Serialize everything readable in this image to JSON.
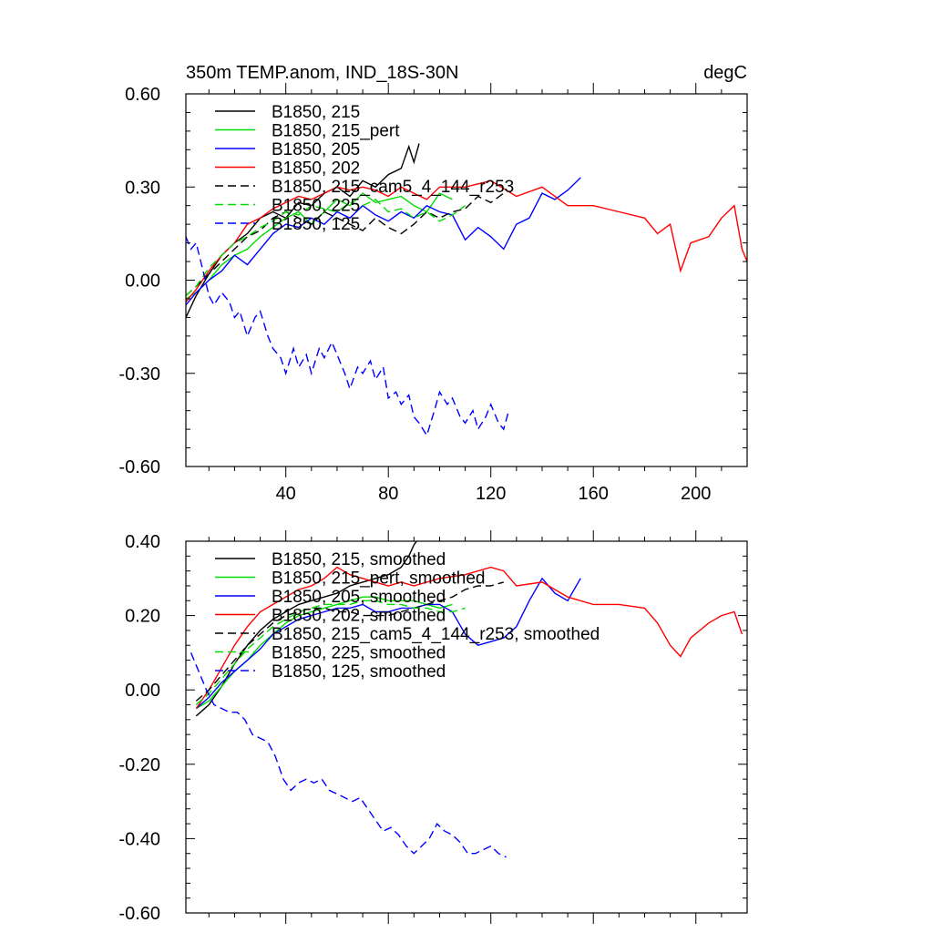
{
  "chart_data": [
    {
      "type": "line",
      "title": "350m TEMP.anom, IND_18S-30N",
      "units": "degC",
      "xlabel": "",
      "ylabel": "",
      "xlim": [
        1,
        220
      ],
      "ylim": [
        -0.6,
        0.6
      ],
      "x_ticks": [
        40,
        80,
        120,
        160,
        200
      ],
      "x_tick_labels": [
        "40",
        "80",
        "120",
        "160",
        "200"
      ],
      "y_ticks": [
        0.6,
        0.3,
        0.0,
        -0.3,
        -0.6
      ],
      "y_tick_labels": [
        "0.60",
        "0.30",
        "0.00",
        "-0.30",
        "-0.60"
      ],
      "legend_position": "top-left",
      "series": [
        {
          "name": "B1850, 215",
          "color": "#000000",
          "dash": "solid",
          "x": [
            1,
            5,
            10,
            15,
            20,
            25,
            30,
            35,
            40,
            45,
            50,
            55,
            60,
            65,
            70,
            75,
            80,
            85,
            88,
            90,
            92
          ],
          "values": [
            -0.12,
            -0.05,
            0.02,
            0.08,
            0.12,
            0.15,
            0.2,
            0.22,
            0.2,
            0.25,
            0.24,
            0.28,
            0.3,
            0.27,
            0.32,
            0.3,
            0.34,
            0.36,
            0.43,
            0.38,
            0.44
          ]
        },
        {
          "name": "B1850, 215_pert",
          "color": "#00dd00",
          "dash": "solid",
          "x": [
            1,
            5,
            10,
            15,
            20,
            25,
            30,
            35,
            40,
            45,
            50,
            55,
            60,
            65,
            70,
            75,
            80,
            85,
            90,
            95,
            100,
            105
          ],
          "values": [
            -0.06,
            -0.04,
            0.0,
            0.05,
            0.08,
            0.1,
            0.14,
            0.17,
            0.2,
            0.22,
            0.18,
            0.22,
            0.26,
            0.24,
            0.28,
            0.25,
            0.26,
            0.27,
            0.24,
            0.22,
            0.28,
            0.26
          ]
        },
        {
          "name": "B1850, 205",
          "color": "#0000ff",
          "dash": "solid",
          "x": [
            1,
            5,
            10,
            15,
            20,
            25,
            30,
            35,
            40,
            45,
            50,
            55,
            60,
            65,
            70,
            75,
            80,
            85,
            90,
            95,
            100,
            105,
            110,
            115,
            120,
            125,
            130,
            135,
            140,
            145,
            150,
            155
          ],
          "values": [
            -0.08,
            -0.04,
            0.0,
            0.03,
            0.08,
            0.05,
            0.1,
            0.15,
            0.18,
            0.17,
            0.2,
            0.18,
            0.22,
            0.2,
            0.24,
            0.21,
            0.19,
            0.22,
            0.2,
            0.24,
            0.22,
            0.21,
            0.13,
            0.17,
            0.14,
            0.1,
            0.18,
            0.2,
            0.28,
            0.26,
            0.29,
            0.33
          ]
        },
        {
          "name": "B1850, 202",
          "color": "#ff0000",
          "dash": "solid",
          "x": [
            1,
            5,
            10,
            15,
            20,
            25,
            30,
            35,
            40,
            45,
            50,
            55,
            60,
            65,
            70,
            75,
            80,
            85,
            90,
            95,
            100,
            110,
            120,
            130,
            140,
            150,
            160,
            170,
            180,
            185,
            190,
            194,
            198,
            205,
            210,
            215,
            218,
            220
          ],
          "values": [
            -0.07,
            -0.03,
            0.03,
            0.08,
            0.12,
            0.18,
            0.2,
            0.23,
            0.25,
            0.27,
            0.26,
            0.28,
            0.3,
            0.29,
            0.3,
            0.29,
            0.27,
            0.3,
            0.28,
            0.26,
            0.3,
            0.3,
            0.32,
            0.27,
            0.3,
            0.24,
            0.24,
            0.22,
            0.2,
            0.15,
            0.18,
            0.03,
            0.12,
            0.14,
            0.2,
            0.24,
            0.1,
            0.06
          ]
        },
        {
          "name": "B1850, 215_cam5_4_144_r253",
          "color": "#000000",
          "dash": "dashed",
          "x": [
            1,
            5,
            10,
            15,
            20,
            25,
            30,
            35,
            40,
            45,
            50,
            55,
            60,
            65,
            70,
            75,
            80,
            85,
            90,
            95,
            100,
            105,
            110,
            115,
            120,
            125
          ],
          "values": [
            -0.05,
            -0.02,
            0.02,
            0.06,
            0.1,
            0.14,
            0.16,
            0.2,
            0.22,
            0.2,
            0.18,
            0.22,
            0.2,
            0.18,
            0.16,
            0.2,
            0.17,
            0.15,
            0.18,
            0.22,
            0.2,
            0.22,
            0.23,
            0.27,
            0.25,
            0.28
          ]
        },
        {
          "name": "B1850, 225",
          "color": "#00dd00",
          "dash": "dashed",
          "x": [
            1,
            5,
            10,
            15,
            20,
            25,
            30,
            35,
            40,
            45,
            50,
            55,
            60,
            65,
            70,
            75,
            80,
            85,
            90,
            95,
            100,
            105,
            110
          ],
          "values": [
            -0.05,
            -0.02,
            0.04,
            0.08,
            0.12,
            0.14,
            0.17,
            0.19,
            0.22,
            0.21,
            0.24,
            0.23,
            0.22,
            0.25,
            0.24,
            0.26,
            0.22,
            0.23,
            0.2,
            0.22,
            0.19,
            0.21,
            0.24
          ]
        },
        {
          "name": "B1850, 125",
          "color": "#0000ff",
          "dash": "dashed",
          "x": [
            1,
            3,
            5,
            8,
            10,
            12,
            15,
            18,
            20,
            22,
            25,
            28,
            30,
            33,
            35,
            38,
            40,
            43,
            45,
            48,
            50,
            53,
            55,
            58,
            60,
            63,
            65,
            68,
            70,
            73,
            75,
            78,
            80,
            83,
            85,
            88,
            90,
            92,
            95,
            98,
            100,
            103,
            105,
            108,
            110,
            113,
            115,
            118,
            120,
            123,
            125,
            127
          ],
          "values": [
            0.14,
            0.1,
            0.12,
            0.02,
            -0.05,
            -0.08,
            -0.04,
            -0.07,
            -0.12,
            -0.1,
            -0.18,
            -0.12,
            -0.1,
            -0.18,
            -0.22,
            -0.25,
            -0.3,
            -0.22,
            -0.28,
            -0.24,
            -0.3,
            -0.22,
            -0.25,
            -0.2,
            -0.24,
            -0.3,
            -0.35,
            -0.28,
            -0.3,
            -0.26,
            -0.32,
            -0.28,
            -0.38,
            -0.36,
            -0.4,
            -0.37,
            -0.44,
            -0.46,
            -0.5,
            -0.42,
            -0.36,
            -0.4,
            -0.38,
            -0.44,
            -0.46,
            -0.42,
            -0.48,
            -0.44,
            -0.4,
            -0.46,
            -0.48,
            -0.42
          ]
        }
      ]
    },
    {
      "type": "line",
      "title": "",
      "xlim": [
        1,
        220
      ],
      "ylim": [
        -0.6,
        0.4
      ],
      "x_ticks": [
        40,
        80,
        120,
        160,
        200
      ],
      "y_ticks": [
        0.4,
        0.2,
        0.0,
        -0.2,
        -0.4,
        -0.6
      ],
      "y_tick_labels": [
        "0.40",
        "0.20",
        "0.00",
        "-0.20",
        "-0.40",
        "-0.60"
      ],
      "legend_position": "top-left",
      "series": [
        {
          "name": "B1850, 215, smoothed",
          "color": "#000000",
          "dash": "solid",
          "x": [
            5,
            10,
            15,
            20,
            25,
            30,
            35,
            40,
            45,
            50,
            55,
            60,
            65,
            70,
            75,
            80,
            85,
            88,
            90,
            92
          ],
          "values": [
            -0.07,
            -0.04,
            0.01,
            0.07,
            0.12,
            0.16,
            0.19,
            0.21,
            0.23,
            0.24,
            0.25,
            0.26,
            0.28,
            0.29,
            0.3,
            0.31,
            0.33,
            0.36,
            0.39,
            0.41
          ]
        },
        {
          "name": "B1850, 215_pert, smoothed",
          "color": "#00dd00",
          "dash": "solid",
          "x": [
            5,
            10,
            15,
            20,
            25,
            30,
            35,
            40,
            45,
            50,
            55,
            60,
            65,
            70,
            75,
            80,
            85,
            90,
            95,
            100,
            105
          ],
          "values": [
            -0.05,
            -0.03,
            0.01,
            0.05,
            0.08,
            0.12,
            0.15,
            0.18,
            0.2,
            0.21,
            0.22,
            0.23,
            0.24,
            0.25,
            0.25,
            0.24,
            0.24,
            0.24,
            0.23,
            0.22,
            0.23
          ]
        },
        {
          "name": "B1850, 205, smoothed",
          "color": "#0000ff",
          "dash": "solid",
          "x": [
            5,
            10,
            15,
            20,
            25,
            30,
            35,
            40,
            45,
            50,
            55,
            60,
            65,
            70,
            75,
            80,
            85,
            90,
            95,
            100,
            105,
            110,
            115,
            120,
            125,
            130,
            135,
            140,
            145,
            150,
            155
          ],
          "values": [
            -0.05,
            -0.02,
            0.02,
            0.05,
            0.08,
            0.11,
            0.15,
            0.17,
            0.19,
            0.2,
            0.21,
            0.22,
            0.22,
            0.23,
            0.21,
            0.21,
            0.22,
            0.22,
            0.23,
            0.23,
            0.21,
            0.15,
            0.12,
            0.13,
            0.14,
            0.17,
            0.24,
            0.3,
            0.26,
            0.24,
            0.3
          ]
        },
        {
          "name": "B1850, 202, smoothed",
          "color": "#ff0000",
          "dash": "solid",
          "x": [
            5,
            10,
            15,
            20,
            25,
            30,
            35,
            40,
            45,
            50,
            55,
            60,
            65,
            70,
            75,
            80,
            85,
            90,
            95,
            100,
            110,
            120,
            125,
            130,
            140,
            150,
            160,
            170,
            180,
            185,
            190,
            194,
            198,
            205,
            210,
            215,
            218
          ],
          "values": [
            -0.05,
            0.0,
            0.06,
            0.12,
            0.17,
            0.21,
            0.23,
            0.25,
            0.27,
            0.28,
            0.3,
            0.33,
            0.31,
            0.3,
            0.29,
            0.28,
            0.29,
            0.28,
            0.29,
            0.3,
            0.31,
            0.33,
            0.32,
            0.28,
            0.29,
            0.25,
            0.23,
            0.23,
            0.22,
            0.18,
            0.12,
            0.09,
            0.14,
            0.18,
            0.2,
            0.21,
            0.15
          ]
        },
        {
          "name": "B1850, 215_cam5_4_144_r253, smoothed",
          "color": "#000000",
          "dash": "dashed",
          "x": [
            5,
            10,
            15,
            20,
            25,
            30,
            35,
            40,
            45,
            50,
            55,
            60,
            65,
            70,
            75,
            80,
            85,
            90,
            95,
            100,
            105,
            110,
            115,
            120,
            125
          ],
          "values": [
            -0.03,
            0.0,
            0.04,
            0.08,
            0.12,
            0.15,
            0.18,
            0.2,
            0.21,
            0.22,
            0.22,
            0.21,
            0.21,
            0.2,
            0.2,
            0.2,
            0.21,
            0.22,
            0.23,
            0.24,
            0.25,
            0.27,
            0.28,
            0.28,
            0.29
          ]
        },
        {
          "name": "B1850, 225, smoothed",
          "color": "#00dd00",
          "dash": "dashed",
          "x": [
            5,
            10,
            15,
            20,
            25,
            30,
            35,
            40,
            45,
            50,
            55,
            60,
            65,
            70,
            75,
            80,
            85,
            90,
            95,
            100,
            105,
            110
          ],
          "values": [
            -0.04,
            -0.01,
            0.03,
            0.07,
            0.11,
            0.14,
            0.17,
            0.19,
            0.21,
            0.22,
            0.23,
            0.23,
            0.23,
            0.24,
            0.24,
            0.23,
            0.23,
            0.22,
            0.22,
            0.21,
            0.21,
            0.22
          ]
        },
        {
          "name": "B1850, 125, smoothed",
          "color": "#0000ff",
          "dash": "dashed",
          "x": [
            3,
            6,
            9,
            12,
            15,
            18,
            21,
            24,
            27,
            30,
            33,
            36,
            39,
            42,
            45,
            48,
            51,
            54,
            57,
            60,
            63,
            66,
            69,
            72,
            75,
            78,
            81,
            84,
            87,
            90,
            93,
            96,
            99,
            102,
            105,
            108,
            111,
            114,
            117,
            120,
            123,
            126
          ],
          "values": [
            0.1,
            0.05,
            0.0,
            -0.04,
            -0.05,
            -0.06,
            -0.06,
            -0.08,
            -0.12,
            -0.13,
            -0.14,
            -0.18,
            -0.24,
            -0.27,
            -0.25,
            -0.24,
            -0.25,
            -0.24,
            -0.27,
            -0.28,
            -0.29,
            -0.3,
            -0.29,
            -0.32,
            -0.35,
            -0.38,
            -0.37,
            -0.39,
            -0.42,
            -0.44,
            -0.42,
            -0.4,
            -0.36,
            -0.38,
            -0.39,
            -0.41,
            -0.44,
            -0.44,
            -0.43,
            -0.42,
            -0.44,
            -0.45
          ]
        }
      ]
    }
  ]
}
